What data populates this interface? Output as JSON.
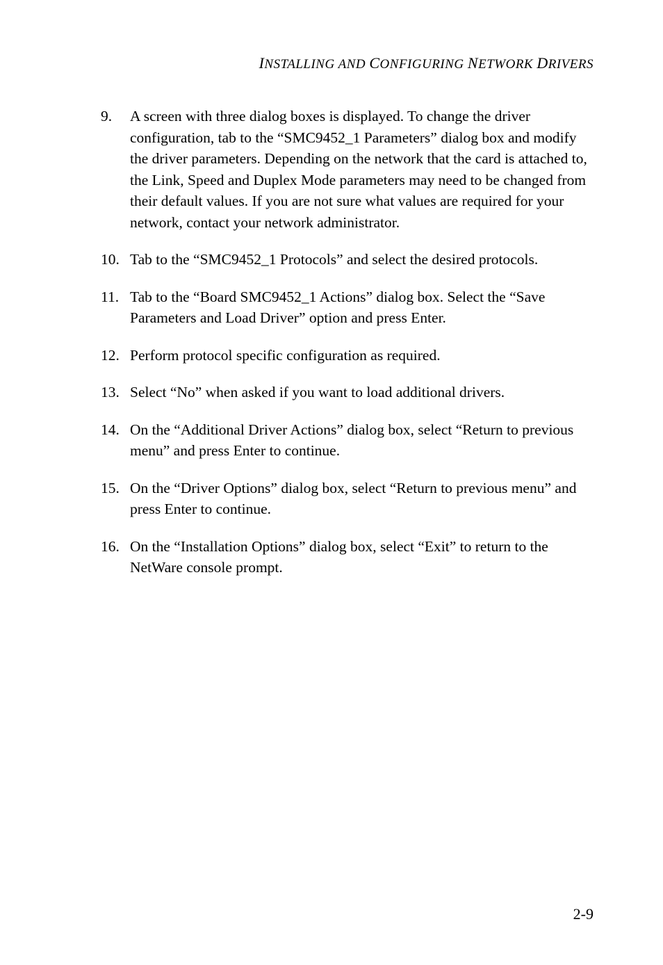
{
  "header": {
    "text_parts": [
      "I",
      "NSTALLING ",
      "AND ",
      "C",
      "ONFIGURING ",
      "N",
      "ETWORK ",
      "D",
      "RIVERS"
    ]
  },
  "list": {
    "items": [
      "A screen with three dialog boxes is displayed. To change the driver configuration, tab to the “SMC9452_1 Parameters” dialog box and modify the driver parameters. Depending on the network that the card is attached to, the Link, Speed and Duplex Mode parameters may need to be changed from their default values. If you are not sure what values are required for your network, contact your network administrator.",
      "Tab to the “SMC9452_1 Protocols” and select the desired protocols.",
      "Tab to the “Board SMC9452_1 Actions” dialog box. Select the “Save Parameters and Load Driver” option and press Enter.",
      "Perform protocol specific configuration as required.",
      "Select “No” when asked if you want to load additional drivers.",
      "On the “Additional Driver Actions” dialog box, select “Return to previous menu” and press Enter to continue.",
      "On the “Driver Options” dialog box, select “Return to previous menu” and press Enter to continue.",
      "On the “Installation Options” dialog box, select “Exit” to return to the NetWare console prompt."
    ]
  },
  "page_number": "2-9"
}
